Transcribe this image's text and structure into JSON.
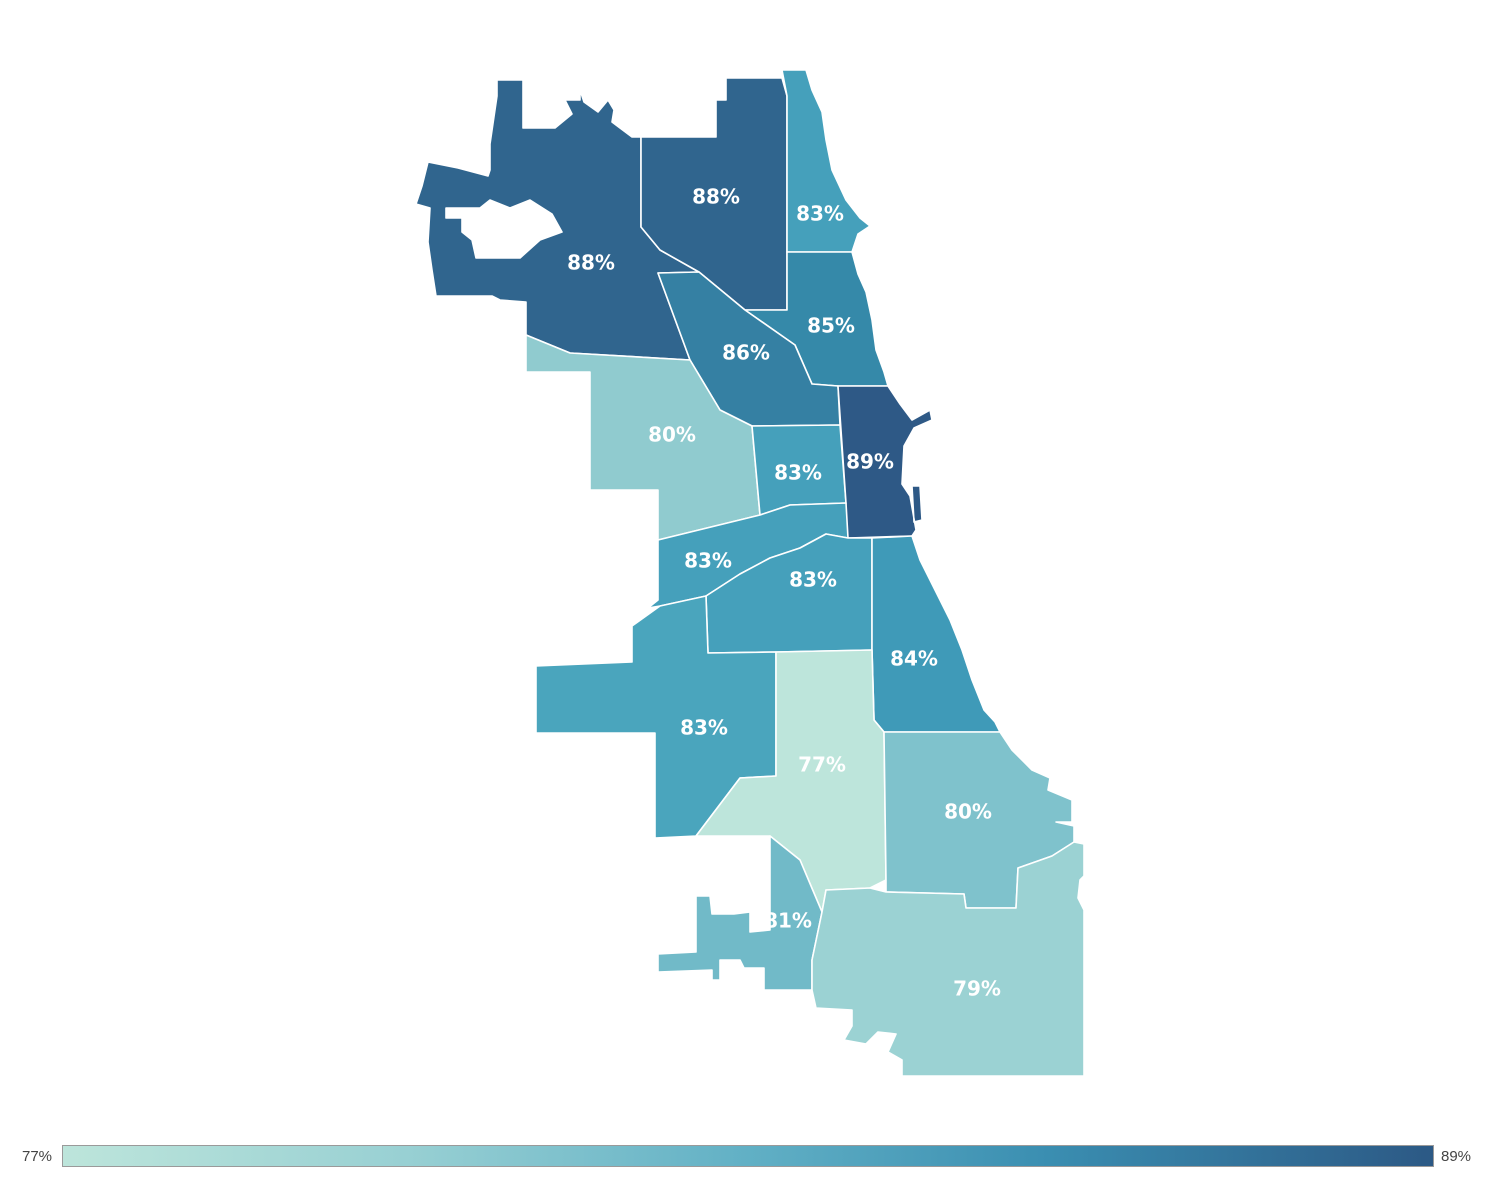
{
  "map": {
    "regions": [
      {
        "id": "far-northwest",
        "label": "88%",
        "value": 88,
        "color": "#30658e"
      },
      {
        "id": "north-central",
        "label": "88%",
        "value": 88,
        "color": "#30658e"
      },
      {
        "id": "far-north-lakefront",
        "label": "83%",
        "value": 83,
        "color": "#45a0bb"
      },
      {
        "id": "north-lakefront",
        "label": "85%",
        "value": 85,
        "color": "#3589a9"
      },
      {
        "id": "northwest-diagonal",
        "label": "86%",
        "value": 86,
        "color": "#3580a3"
      },
      {
        "id": "west",
        "label": "80%",
        "value": 80,
        "color": "#90cbcf"
      },
      {
        "id": "near-west",
        "label": "83%",
        "value": 83,
        "color": "#45a0bb"
      },
      {
        "id": "central",
        "label": "89%",
        "value": 89,
        "color": "#2e5986"
      },
      {
        "id": "southwest-upper",
        "label": "83%",
        "value": 83,
        "color": "#45a0bb"
      },
      {
        "id": "south-central",
        "label": "83%",
        "value": 83,
        "color": "#45a0bb"
      },
      {
        "id": "south-lakefront",
        "label": "84%",
        "value": 84,
        "color": "#3f9ab8"
      },
      {
        "id": "far-southwest",
        "label": "83%",
        "value": 83,
        "color": "#4aa5bd"
      },
      {
        "id": "south-inner",
        "label": "77%",
        "value": 77,
        "color": "#bde5db"
      },
      {
        "id": "southeast",
        "label": "80%",
        "value": 80,
        "color": "#7fc2cc"
      },
      {
        "id": "far-southwest-lower",
        "label": "81%",
        "value": 81,
        "color": "#71bac8"
      },
      {
        "id": "far-south",
        "label": "79%",
        "value": 79,
        "color": "#9bd2d3"
      }
    ]
  },
  "legend": {
    "min_label": "77%",
    "max_label": "89%",
    "min_value": 77,
    "max_value": 89,
    "min_color": "#bde5db",
    "max_color": "#2c5985"
  }
}
